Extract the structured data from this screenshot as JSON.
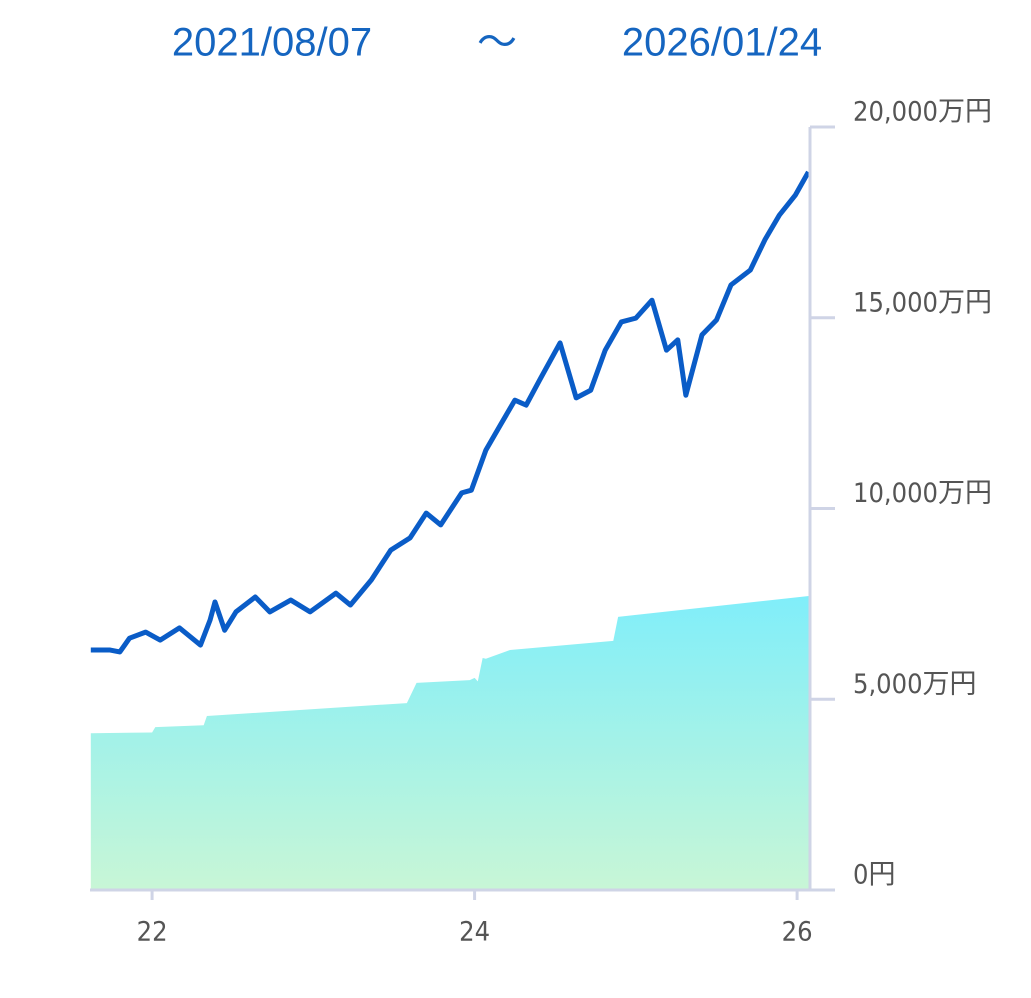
{
  "chart_data": {
    "type": "line",
    "date_range": [
      "2021/08/07",
      "～",
      "2026/01/24"
    ],
    "xlim": [
      2021.615,
      2026.08
    ],
    "xticks": [
      {
        "value": 2022,
        "label": "22"
      },
      {
        "value": 2024,
        "label": "24"
      },
      {
        "value": 2026,
        "label": "26"
      }
    ],
    "ylim": [
      0,
      20000
    ],
    "yticks": [
      {
        "value": 0,
        "label": "0円"
      },
      {
        "value": 5000,
        "label": "5,000万円"
      },
      {
        "value": 10000,
        "label": "10,000万円"
      },
      {
        "value": 15000,
        "label": "15,000万円"
      },
      {
        "value": 20000,
        "label": "20,000万円"
      }
    ],
    "series": [
      {
        "type": "area",
        "gradient": [
          "#80eefa",
          "#c8f6d6"
        ],
        "x": [
          2021.62,
          2022.0,
          2022.02,
          2022.32,
          2022.34,
          2023.58,
          2023.64,
          2023.97,
          2024.0,
          2024.02,
          2024.05,
          2024.07,
          2024.22,
          2024.86,
          2024.89,
          2026.08
        ],
        "values": [
          4110,
          4130,
          4270,
          4320,
          4560,
          4900,
          5430,
          5500,
          5560,
          5470,
          6080,
          6060,
          6290,
          6530,
          7160,
          7710
        ]
      },
      {
        "type": "line",
        "color": "#0a5cc7",
        "x": [
          2021.62,
          2021.74,
          2021.8,
          2021.86,
          2021.96,
          2022.05,
          2022.17,
          2022.3,
          2022.36,
          2022.39,
          2022.45,
          2022.52,
          2022.64,
          2022.73,
          2022.86,
          2022.98,
          2023.14,
          2023.23,
          2023.36,
          2023.48,
          2023.6,
          2023.7,
          2023.79,
          2023.92,
          2023.98,
          2024.07,
          2024.16,
          2024.25,
          2024.32,
          2024.41,
          2024.53,
          2024.63,
          2024.72,
          2024.81,
          2024.91,
          2025.0,
          2025.1,
          2025.19,
          2025.26,
          2025.31,
          2025.41,
          2025.5,
          2025.59,
          2025.71,
          2025.8,
          2025.89,
          2025.99,
          2026.07
        ],
        "values": [
          6290,
          6290,
          6240,
          6600,
          6760,
          6550,
          6870,
          6420,
          7080,
          7550,
          6810,
          7290,
          7680,
          7290,
          7600,
          7290,
          7780,
          7470,
          8130,
          8910,
          9230,
          9880,
          9570,
          10410,
          10480,
          11530,
          12190,
          12840,
          12710,
          13420,
          14340,
          12900,
          13100,
          14150,
          14890,
          14990,
          15460,
          14150,
          14420,
          12970,
          14550,
          14940,
          15860,
          16250,
          17040,
          17690,
          18220,
          18820
        ]
      }
    ]
  }
}
